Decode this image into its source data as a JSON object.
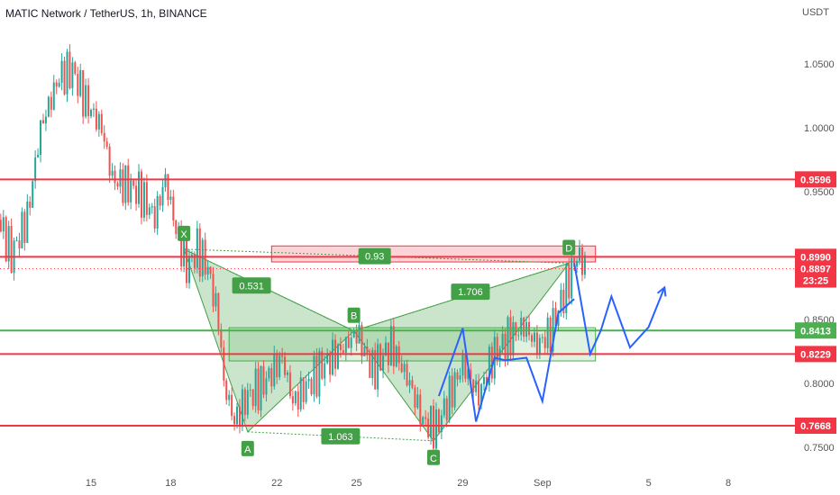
{
  "header": {
    "title": "MATIC Network / TetherUS, 1h, BINANCE",
    "currency": "USDT"
  },
  "colors": {
    "up": "#26a69a",
    "down": "#ef5350",
    "resistance": "#f23645",
    "support": "#4caf50",
    "pattern": "#43a047",
    "projection": "#2962ff",
    "price": "#f23645"
  },
  "chart_data": {
    "type": "candlestick",
    "title": "MATIC Network / TetherUS, 1h, BINANCE",
    "ylim": [
      0.7337,
      1.0789
    ],
    "y_ticks": [
      1.05,
      1.0,
      0.95,
      0.85,
      0.8,
      0.75
    ],
    "y_tick_labels": [
      "1.0500",
      "1.0000",
      "0.9500",
      "0.8500",
      "0.8000",
      "0.7500"
    ],
    "x_ticks": [
      {
        "label": "15",
        "day": 15
      },
      {
        "label": "18",
        "day": 18
      },
      {
        "label": "22",
        "day": 22
      },
      {
        "label": "25",
        "day": 25
      },
      {
        "label": "29",
        "day": 29
      },
      {
        "label": "Sep",
        "day": 32
      },
      {
        "label": "5",
        "day": 36
      },
      {
        "label": "8",
        "day": 39
      }
    ],
    "series_outline": [
      [
        11.5,
        0.93
      ],
      [
        12.0,
        0.9
      ],
      [
        12.6,
        0.93
      ],
      [
        13.1,
        1.0
      ],
      [
        13.8,
        1.04
      ],
      [
        14.3,
        1.045
      ],
      [
        14.8,
        1.02
      ],
      [
        15.4,
        1.0
      ],
      [
        15.8,
        0.96
      ],
      [
        16.8,
        0.95
      ],
      [
        17.4,
        0.93
      ],
      [
        17.8,
        0.96
      ],
      [
        18.2,
        0.92
      ],
      [
        18.6,
        0.89
      ],
      [
        19.0,
        0.905
      ],
      [
        19.4,
        0.89
      ],
      [
        19.8,
        0.85
      ],
      [
        20.0,
        0.8
      ],
      [
        20.4,
        0.77
      ],
      [
        20.9,
        0.79
      ],
      [
        21.5,
        0.8
      ],
      [
        22.2,
        0.82
      ],
      [
        22.6,
        0.785
      ],
      [
        23.2,
        0.8
      ],
      [
        23.8,
        0.815
      ],
      [
        24.6,
        0.83
      ],
      [
        25.0,
        0.84
      ],
      [
        25.6,
        0.81
      ],
      [
        26.3,
        0.83
      ],
      [
        27.0,
        0.8
      ],
      [
        27.5,
        0.77
      ],
      [
        28.0,
        0.765
      ],
      [
        28.5,
        0.79
      ],
      [
        29.0,
        0.815
      ],
      [
        29.6,
        0.79
      ],
      [
        30.1,
        0.82
      ],
      [
        30.7,
        0.835
      ],
      [
        31.3,
        0.845
      ],
      [
        31.8,
        0.83
      ],
      [
        32.3,
        0.84
      ],
      [
        32.8,
        0.87
      ],
      [
        33.3,
        0.9
      ],
      [
        33.7,
        0.89
      ]
    ],
    "horizontal_levels": [
      {
        "value": 0.9596,
        "label": "0.9596",
        "kind": "resistance"
      },
      {
        "value": 0.899,
        "label": "0.8990",
        "kind": "resistance"
      },
      {
        "value": 0.8413,
        "label": "0.8413",
        "kind": "support"
      },
      {
        "value": 0.8229,
        "label": "0.8229",
        "kind": "resistance"
      },
      {
        "value": 0.7668,
        "label": "0.7668",
        "kind": "resistance"
      }
    ],
    "current_price": {
      "value": 0.8897,
      "label": "0.8897",
      "countdown": "23:25"
    },
    "harmonic_pattern": {
      "points": [
        {
          "label": "X",
          "day": 18.5,
          "value": 0.905
        },
        {
          "label": "A",
          "day": 20.9,
          "value": 0.762
        },
        {
          "label": "B",
          "day": 24.9,
          "value": 0.841
        },
        {
          "label": "C",
          "day": 27.9,
          "value": 0.755
        },
        {
          "label": "D",
          "day": 33.0,
          "value": 0.894
        }
      ],
      "ratios": [
        {
          "label": "0.531",
          "between": "XA-AB"
        },
        {
          "label": "1.063",
          "between": "AC"
        },
        {
          "label": "1.706",
          "between": "BD"
        },
        {
          "label": "0.93",
          "between": "XD"
        }
      ]
    },
    "zones": [
      {
        "kind": "resistance",
        "from_day": 21.8,
        "to_day": 34.0,
        "low": 0.895,
        "high": 0.9075
      },
      {
        "kind": "support",
        "from_day": 20.2,
        "to_day": 34.0,
        "low": 0.8175,
        "high": 0.8435
      }
    ],
    "projection_path": [
      [
        33.2,
        0.894
      ],
      [
        33.8,
        0.8229
      ],
      [
        34.2,
        0.8413
      ],
      [
        34.6,
        0.868
      ],
      [
        35.3,
        0.828
      ],
      [
        36.0,
        0.844
      ],
      [
        36.6,
        0.875
      ]
    ],
    "blue_fractal": [
      [
        28.1,
        0.79
      ],
      [
        29.0,
        0.843
      ],
      [
        29.5,
        0.77
      ],
      [
        30.2,
        0.82
      ],
      [
        30.6,
        0.818
      ],
      [
        31.4,
        0.82
      ],
      [
        32.0,
        0.786
      ],
      [
        32.6,
        0.855
      ],
      [
        33.2,
        0.866
      ]
    ]
  }
}
